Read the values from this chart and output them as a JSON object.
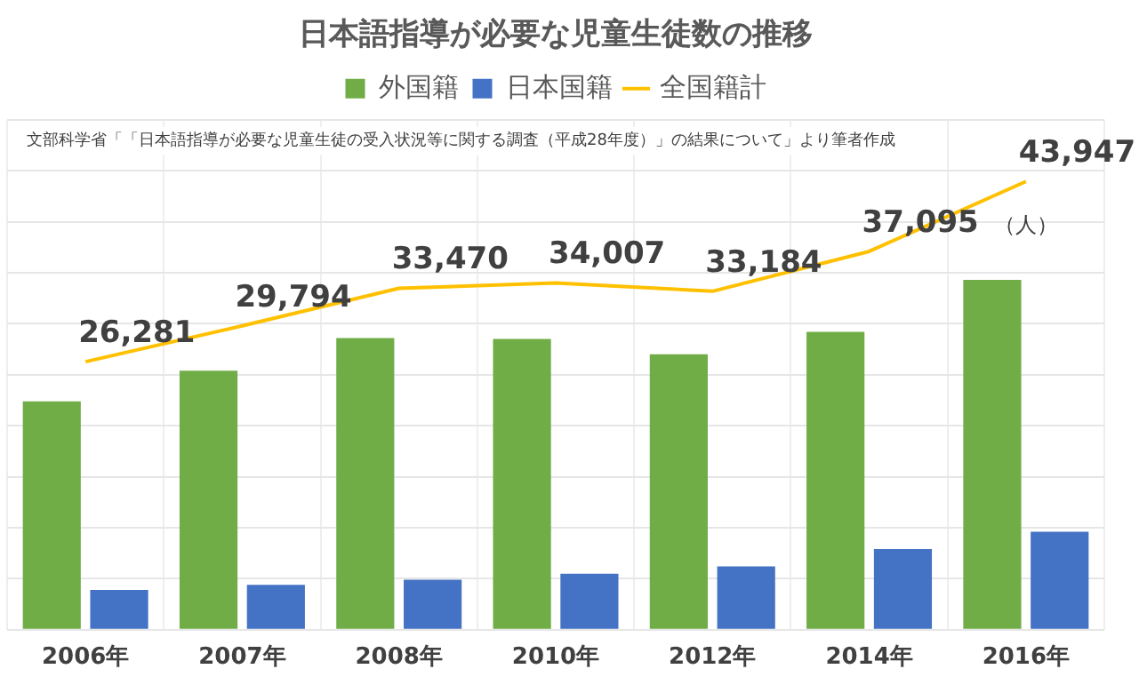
{
  "chart_data": {
    "type": "bar",
    "title": "日本語指導が必要な児童生徒数の推移",
    "categories": [
      "2006年",
      "2007年",
      "2008年",
      "2010年",
      "2012年",
      "2014年",
      "2016年"
    ],
    "series": [
      {
        "name": "外国籍",
        "type": "bar",
        "color": "#70ad47",
        "values": [
          22400,
          25400,
          28600,
          28500,
          27000,
          29200,
          34300
        ]
      },
      {
        "name": "日本国籍",
        "type": "bar",
        "color": "#4472c4",
        "values": [
          3900,
          4400,
          4900,
          5500,
          6200,
          7900,
          9600
        ]
      },
      {
        "name": "全国籍計",
        "type": "line",
        "color": "#ffc000",
        "marker": "none",
        "values": [
          26281,
          29794,
          33470,
          34007,
          33184,
          37095,
          43947
        ],
        "value_labels": [
          "26,281",
          "29,794",
          "33,470",
          "34,007",
          "33,184",
          "37,095",
          "43,947"
        ]
      }
    ],
    "ylim": [
      0,
      50000
    ],
    "yticks": [
      0,
      5000,
      10000,
      15000,
      20000,
      25000,
      30000,
      35000,
      40000,
      45000,
      50000
    ],
    "tick_labels": "x",
    "grid": true,
    "legend": "top",
    "annotations": [
      "文部科学省「「日本語指導が必要な児童生徒の受入状況等に関する調査（平成28年度）」の結果について」より筆者作成",
      "（人）"
    ]
  }
}
